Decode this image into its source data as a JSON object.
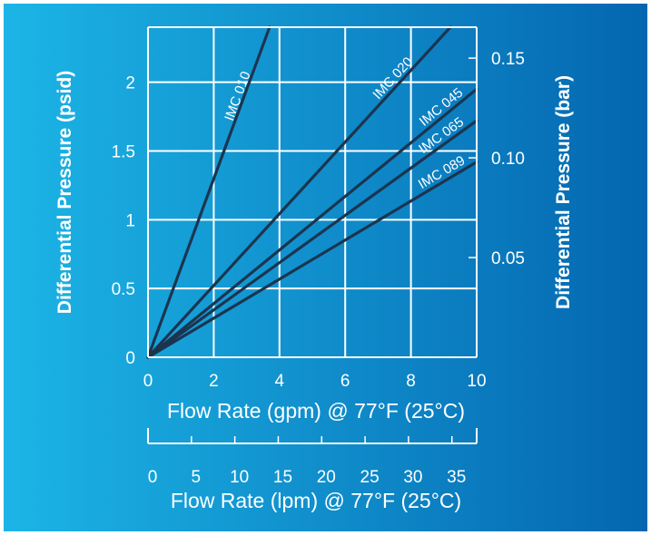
{
  "colors": {
    "bg_left": "#1cb5e6",
    "bg_right": "#0466b0",
    "frame": "#ffffff",
    "series_line": "#1b3550",
    "text": "#ffffff"
  },
  "chart_data": {
    "type": "line",
    "xlabel": "Flow Rate (gpm) @ 77°F (25°C)",
    "ylabel": "Differential Pressure (psid)",
    "y2label": "Differential Pressure (bar)",
    "x2label": "Flow Rate (lpm) @ 77°F (25°C)",
    "xlim": [
      0,
      10
    ],
    "ylim": [
      0,
      2.4
    ],
    "y2lim": [
      0,
      0.1655
    ],
    "x2lim": [
      0,
      37.85
    ],
    "grid": true,
    "xticks": [
      0,
      2,
      4,
      6,
      8,
      10
    ],
    "xtick_labels": [
      "0",
      "2",
      "4",
      "6",
      "8",
      "10"
    ],
    "yticks": [
      0,
      0.5,
      1,
      1.5,
      2
    ],
    "ytick_labels": [
      "0",
      "0.5",
      "1",
      "1.5",
      "2"
    ],
    "y2ticks": [
      0.05,
      0.1,
      0.15
    ],
    "y2tick_labels": [
      "0.05",
      "0.10",
      "0.15"
    ],
    "x2ticks": [
      0,
      5,
      10,
      15,
      20,
      25,
      30,
      35
    ],
    "x2tick_labels": [
      "0",
      "5",
      "10",
      "15",
      "20",
      "25",
      "30",
      "35"
    ],
    "series": [
      {
        "name": "IMC 010",
        "x": [
          0,
          3.7
        ],
        "y": [
          0,
          2.4
        ]
      },
      {
        "name": "IMC 020",
        "x": [
          0,
          9.2
        ],
        "y": [
          0,
          2.4
        ]
      },
      {
        "name": "IMC 045",
        "x": [
          0,
          10
        ],
        "y": [
          0,
          1.95
        ]
      },
      {
        "name": "IMC 065",
        "x": [
          0,
          10
        ],
        "y": [
          0,
          1.72
        ]
      },
      {
        "name": "IMC 089",
        "x": [
          0,
          10
        ],
        "y": [
          0,
          1.42
        ]
      }
    ]
  }
}
